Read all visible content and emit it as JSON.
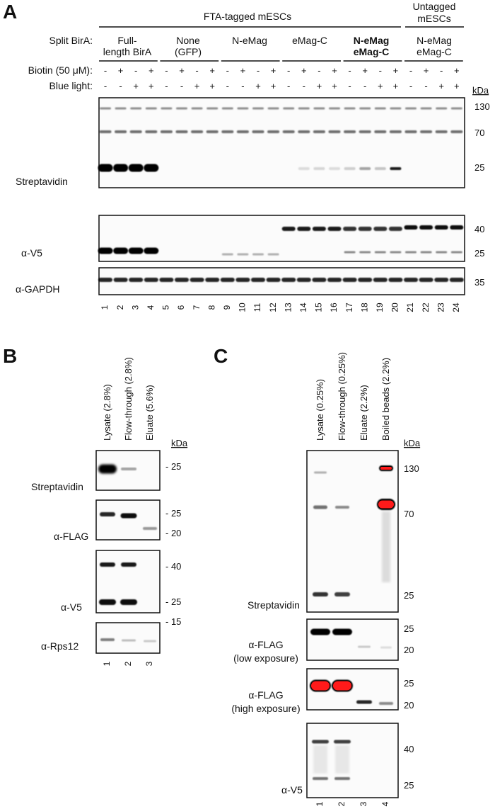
{
  "panel_a": {
    "letter": "A",
    "group_tagged": "FTA-tagged mESCs",
    "group_untagged": [
      "Untagged",
      "mESCs"
    ],
    "split_birA_label": "Split BirA:",
    "conditions": [
      [
        "Full-",
        "length BirA"
      ],
      [
        "None",
        "(GFP)"
      ],
      [
        "N-eMag"
      ],
      [
        "eMag-C"
      ],
      [
        "N-eMag",
        "eMag-C"
      ],
      [
        "N-eMag",
        "eMag-C"
      ]
    ],
    "biotin_label": "Biotin (50 μM):",
    "blue_light_label": "Blue light:",
    "biotin_signs": [
      "-",
      "+",
      "-",
      "+"
    ],
    "light_signs": [
      "-",
      "-",
      "+",
      "+"
    ],
    "lane_numbers": [
      "1",
      "2",
      "3",
      "4",
      "5",
      "6",
      "7",
      "8",
      "9",
      "10",
      "11",
      "12",
      "13",
      "14",
      "15",
      "16",
      "17",
      "18",
      "19",
      "20",
      "21",
      "22",
      "23",
      "24"
    ],
    "kda_label": "kDa",
    "blots": [
      {
        "label": "Streptavidin",
        "markers": [
          "130",
          "70",
          "25"
        ]
      },
      {
        "label": "α-V5",
        "markers": [
          "40",
          "25"
        ]
      },
      {
        "label": "α-GAPDH",
        "markers": [
          "35"
        ]
      }
    ]
  },
  "panel_b": {
    "letter": "B",
    "lanes": [
      "Lysate (2.8%)",
      "Flow-through (2.8%)",
      "Eluate (5.6%)"
    ],
    "lane_numbers": [
      "1",
      "2",
      "3"
    ],
    "kda_label": "kDa",
    "blots": [
      {
        "label": "Streptavidin",
        "markers": [
          "- 25"
        ]
      },
      {
        "label": "α-FLAG",
        "markers": [
          "- 25",
          "- 20"
        ]
      },
      {
        "label": "α-V5",
        "markers": [
          "- 40",
          "- 25"
        ]
      },
      {
        "label": "α-Rps12",
        "markers": [
          "- 15"
        ]
      }
    ]
  },
  "panel_c": {
    "letter": "C",
    "lanes": [
      "Lysate (0.25%)",
      "Flow-through (0.25%)",
      "Eluate (2.2%)",
      "Boiled beads (2.2%)"
    ],
    "lane_numbers": [
      "1",
      "2",
      "3",
      "4"
    ],
    "kda_label": "kDa",
    "saturation_color": "#ff1a1a",
    "blots": [
      {
        "label": [
          "Streptavidin"
        ],
        "markers": [
          "130",
          "70",
          "25"
        ]
      },
      {
        "label": [
          "α-FLAG",
          "(low exposure)"
        ],
        "markers": [
          "25",
          "20"
        ]
      },
      {
        "label": [
          "α-FLAG",
          "(high exposure)"
        ],
        "markers": [
          "25",
          "20"
        ]
      },
      {
        "label": [
          "α-V5"
        ],
        "markers": [
          "40",
          "25"
        ]
      }
    ]
  }
}
